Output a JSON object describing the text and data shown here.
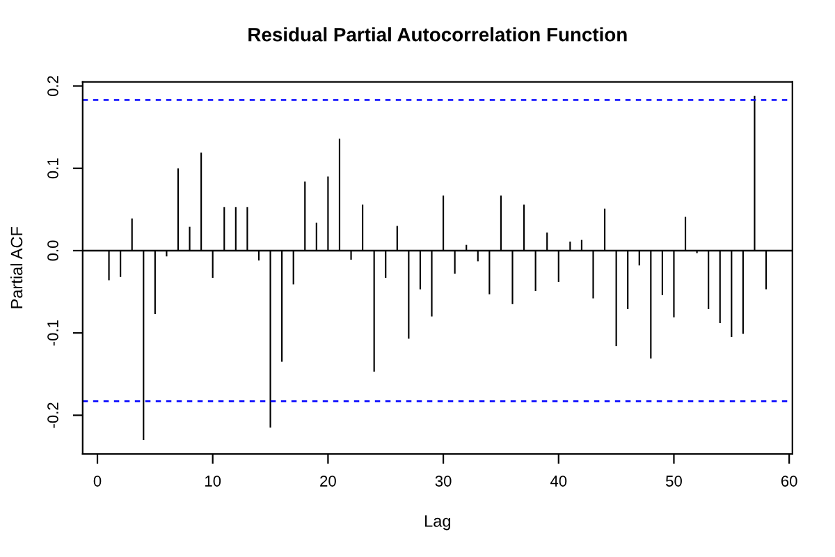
{
  "chart_data": {
    "type": "bar",
    "title": "Residual Partial Autocorrelation Function",
    "xlabel": "Lag",
    "ylabel": "Partial ACF",
    "x": [
      1,
      2,
      3,
      4,
      5,
      6,
      7,
      8,
      9,
      10,
      11,
      12,
      13,
      14,
      15,
      16,
      17,
      18,
      19,
      20,
      21,
      22,
      23,
      24,
      25,
      26,
      27,
      28,
      29,
      30,
      31,
      32,
      33,
      34,
      35,
      36,
      37,
      38,
      39,
      40,
      41,
      42,
      43,
      44,
      45,
      46,
      47,
      48,
      49,
      50,
      51,
      52,
      53,
      54,
      55,
      56,
      57,
      58
    ],
    "values": [
      -0.036,
      -0.032,
      0.039,
      -0.23,
      -0.077,
      -0.007,
      0.1,
      0.029,
      0.119,
      -0.033,
      0.053,
      0.053,
      0.053,
      -0.012,
      -0.215,
      -0.135,
      -0.041,
      0.084,
      0.034,
      0.09,
      0.136,
      -0.011,
      0.056,
      -0.147,
      -0.033,
      0.03,
      -0.107,
      -0.047,
      -0.08,
      0.067,
      -0.028,
      0.007,
      -0.013,
      -0.053,
      0.067,
      -0.065,
      0.056,
      -0.049,
      0.022,
      -0.038,
      0.011,
      0.013,
      -0.058,
      0.051,
      -0.116,
      -0.071,
      -0.018,
      -0.131,
      -0.054,
      -0.081,
      0.041,
      -0.003,
      -0.071,
      -0.088,
      -0.105,
      -0.101,
      0.188,
      -0.047
    ],
    "color": "#000000",
    "xlim": [
      -1.28,
      60.28
    ],
    "ylim": [
      -0.247,
      0.205
    ],
    "xticks": [
      0,
      10,
      20,
      30,
      40,
      50,
      60
    ],
    "yticks": [
      -0.2,
      -0.1,
      {
        "value": 0,
        "label": "0.0"
      },
      0.1,
      0.2
    ],
    "ref_lines": [
      {
        "axis": "y",
        "value": 0,
        "color": "#000000",
        "line_style": "solid"
      },
      {
        "axis": "y",
        "value": 0.183,
        "color": "#0000ff",
        "line_style": "dashed"
      },
      {
        "axis": "y",
        "value": -0.183,
        "color": "#0000ff",
        "line_style": "dashed"
      }
    ]
  }
}
